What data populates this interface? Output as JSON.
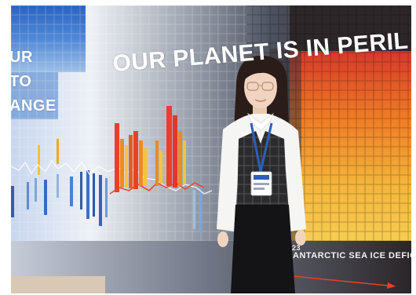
{
  "scene": {
    "left_slogan_lines": [
      "UR",
      "TO",
      "ANGE"
    ],
    "headline": "OUR PLANET IS IN PERIL",
    "year_label": "23",
    "deficit_label": "ANTARCTIC SEA ICE DEFICIT"
  },
  "colors": {
    "heat_red": "#e8402a",
    "heat_orange": "#f08a1c",
    "heat_yellow": "#f6c33a",
    "cool_blue": "#3d6fc4",
    "ice_blue": "#8fb8e2",
    "badge_blue": "#2d5fb8"
  }
}
